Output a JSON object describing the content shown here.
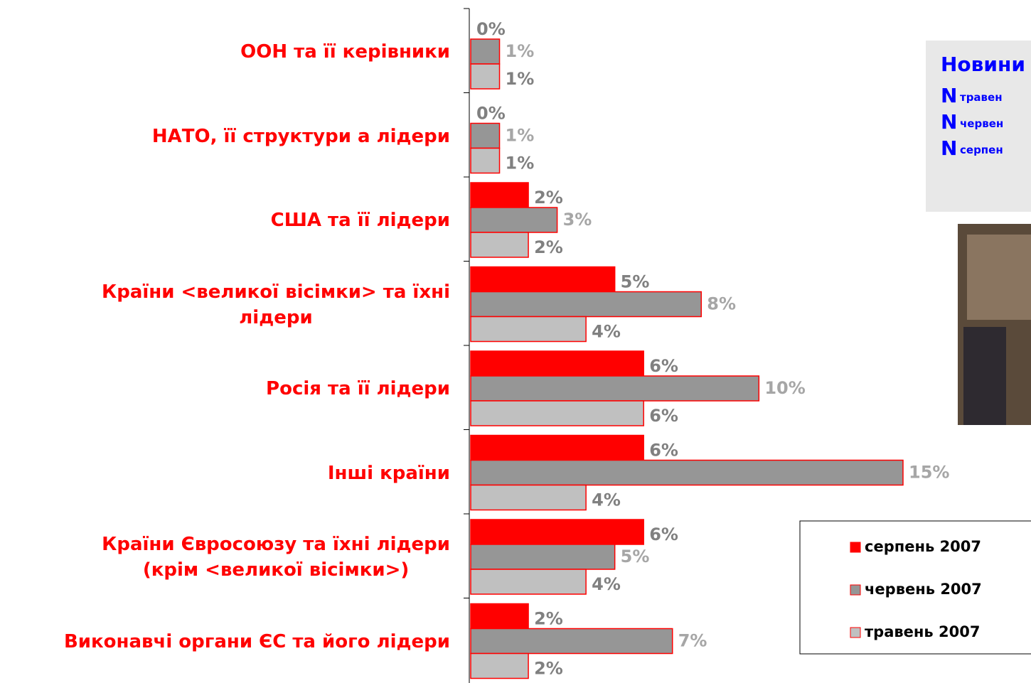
{
  "chart_data": {
    "type": "barh",
    "categories": [
      "ООН та її керівники",
      "НАТО, її структури а лідери",
      "США та її лідери",
      "Країни <великої вісімки> та їхні\nлідери",
      "Росія та її лідери",
      "Інші країни",
      "Країни Євросоюзу та їхні лідери\n(крім <великої вісімки>)",
      "Виконавчі органи ЄС та його лідери"
    ],
    "series": [
      {
        "name": "серпень 2007",
        "color": "#ff0000",
        "label_color": "#808080",
        "values": [
          0,
          0,
          2,
          5,
          6,
          6,
          6,
          2
        ]
      },
      {
        "name": "червень 2007",
        "color": "#969696",
        "label_color": "#a6a6a6",
        "values": [
          1,
          1,
          3,
          8,
          10,
          15,
          5,
          7
        ]
      },
      {
        "name": "травень 2007",
        "color": "#c0c0c0",
        "label_color": "#808080",
        "values": [
          1,
          1,
          2,
          4,
          6,
          4,
          4,
          2
        ]
      }
    ],
    "value_labels": [
      [
        "0%",
        "0%",
        "2%",
        "5%",
        "6%",
        "6%",
        "6%",
        "2%"
      ],
      [
        "1%",
        "1%",
        "3%",
        "8%",
        "10%",
        "15%",
        "5%",
        "7%"
      ],
      [
        "1%",
        "1%",
        "2%",
        "4%",
        "6%",
        "4%",
        "4%",
        "2%"
      ]
    ],
    "xlim": [
      0,
      15
    ],
    "legend": "right"
  },
  "side_note": {
    "title": "Новини",
    "lines": [
      {
        "mark": "N",
        "text": "травен"
      },
      {
        "mark": "N",
        "text": "червен"
      },
      {
        "mark": "N",
        "text": "серпен"
      }
    ]
  }
}
